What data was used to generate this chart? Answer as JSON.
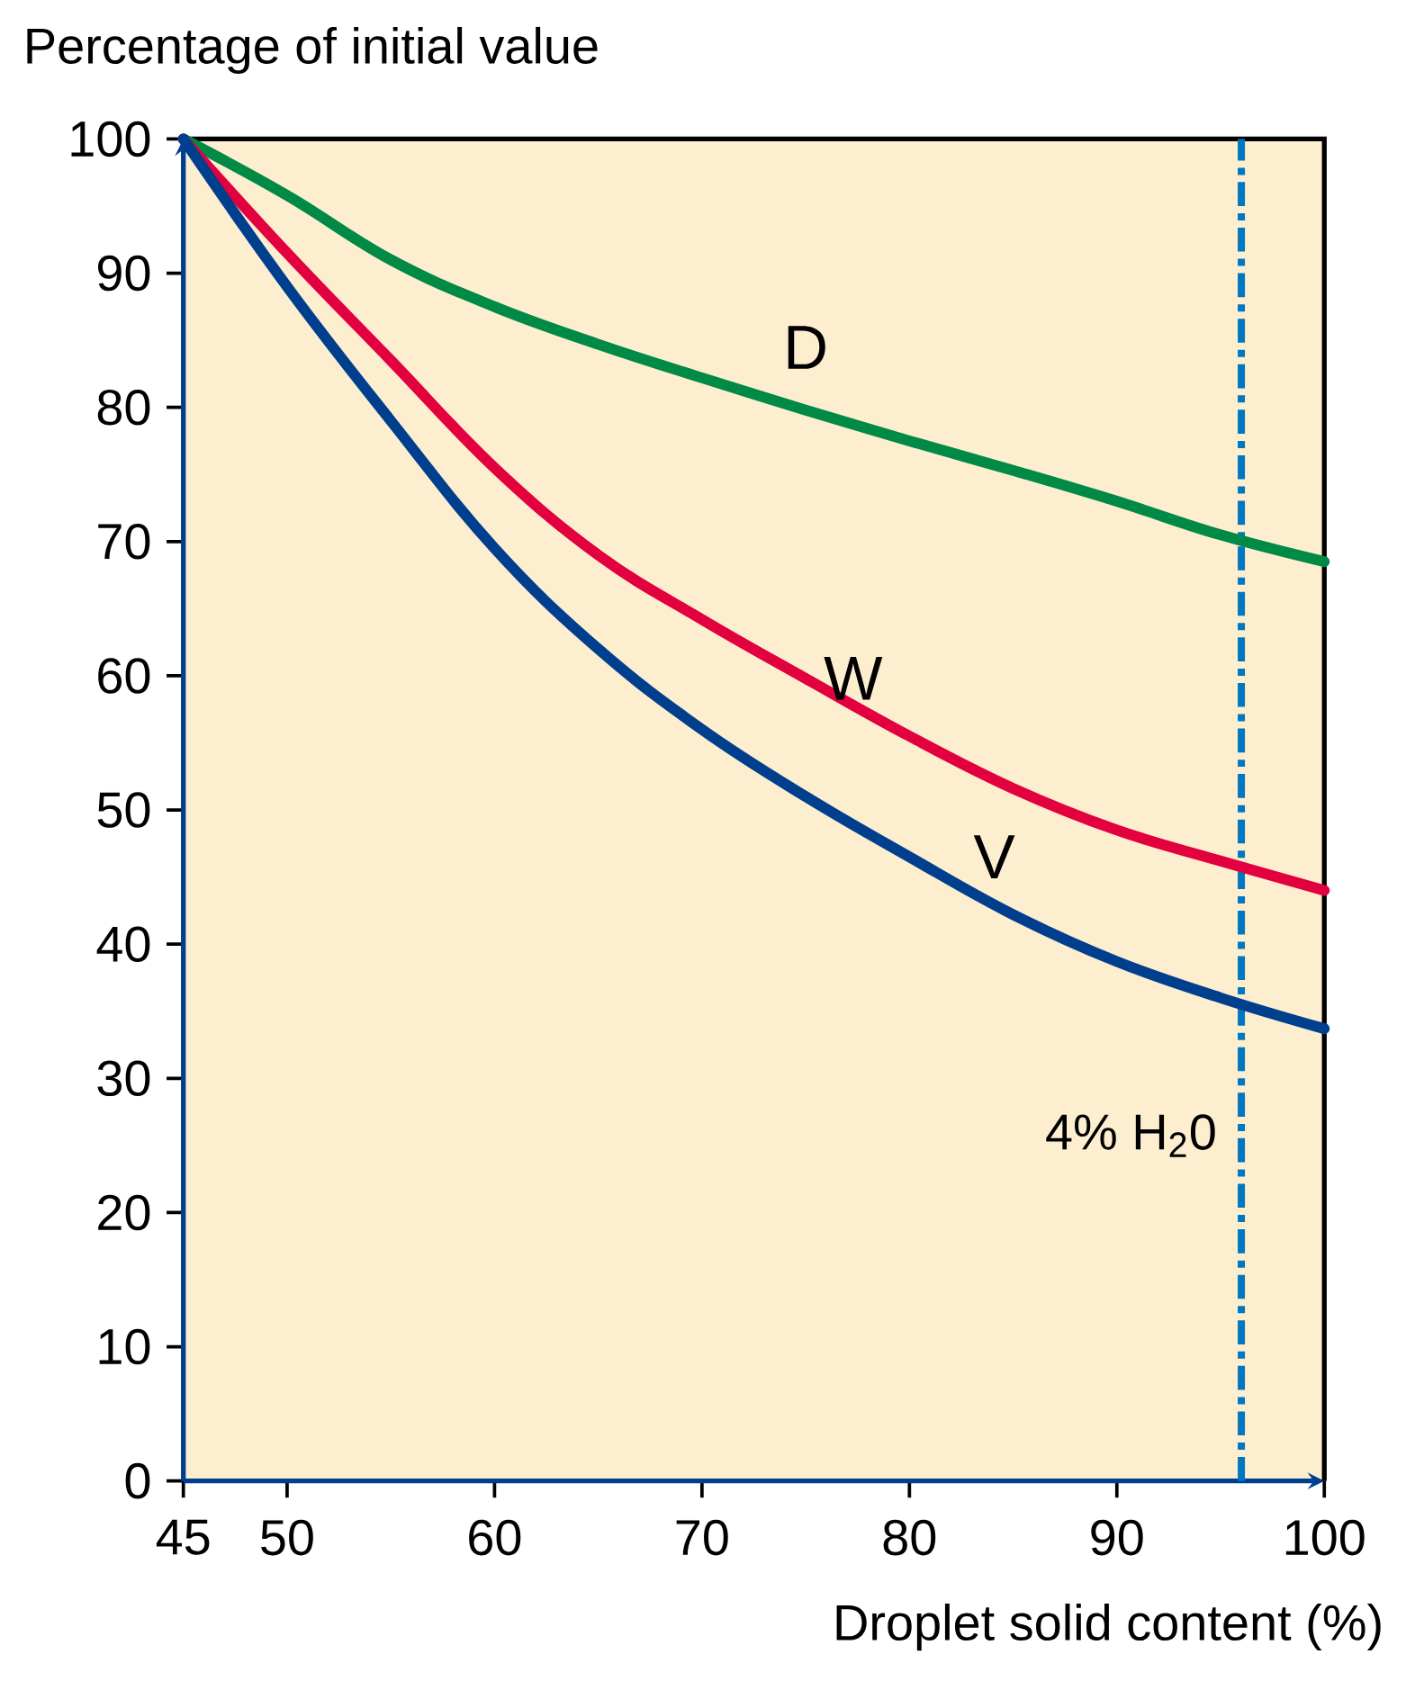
{
  "chart_data": {
    "type": "line",
    "title": "Percentage of initial value",
    "xlabel": "Droplet solid content (%)",
    "x": [
      45,
      50,
      55,
      60,
      65,
      70,
      75,
      80,
      85,
      90,
      95,
      100
    ],
    "series": [
      {
        "name": "D",
        "color": "#008a45",
        "values": [
          100,
          95.8,
          91.0,
          87.5,
          84.7,
          82.2,
          79.8,
          77.5,
          75.3,
          73.0,
          70.5,
          68.5
        ]
      },
      {
        "name": "W",
        "color": "#e2003f",
        "values": [
          100,
          91.5,
          83.5,
          75.5,
          69.0,
          64.2,
          59.8,
          55.5,
          51.6,
          48.5,
          46.2,
          44.0
        ]
      },
      {
        "name": "V",
        "color": "#003f8e",
        "values": [
          100,
          89.0,
          79.0,
          69.5,
          62.0,
          56.0,
          51.0,
          46.5,
          42.2,
          38.7,
          36.0,
          33.7
        ]
      }
    ],
    "xlim": [
      45,
      100
    ],
    "ylim": [
      0,
      100
    ],
    "xticks": [
      45,
      50,
      60,
      70,
      80,
      90,
      100
    ],
    "yticks": [
      0,
      10,
      20,
      30,
      40,
      50,
      60,
      70,
      80,
      90,
      100
    ],
    "ref_lines": [
      {
        "axis": "x",
        "value": 96,
        "label": "4% H$_{2}$0",
        "color": "#0077c0",
        "line_style": "dashed"
      }
    ],
    "grid": false,
    "marker": "none",
    "line_style": "solid"
  }
}
